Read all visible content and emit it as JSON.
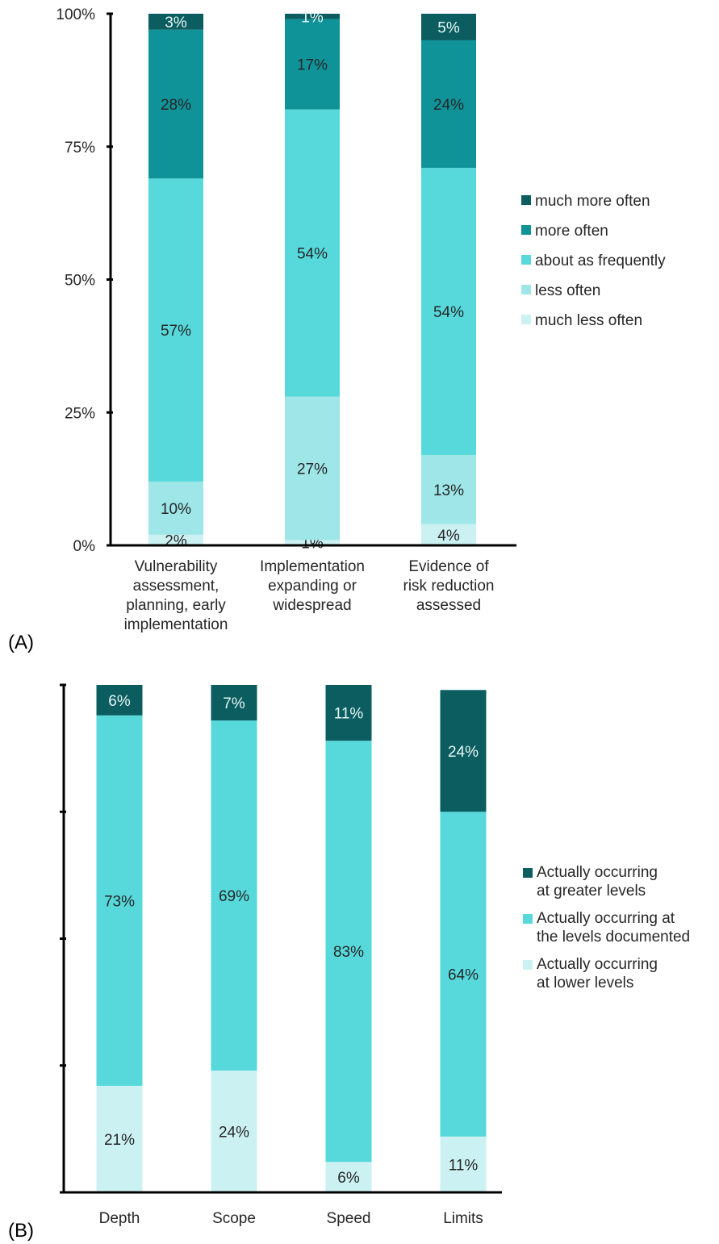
{
  "chart_data": [
    {
      "type": "bar",
      "stacked": true,
      "panel_label": "(A)",
      "categories": [
        [
          "Vulnerability",
          "assessment,",
          "planning, early",
          "implementation"
        ],
        [
          "Implementation",
          "expanding or",
          "widespread"
        ],
        [
          "Evidence of",
          "risk reduction",
          "assessed"
        ]
      ],
      "yticks": [
        "0%",
        "25%",
        "50%",
        "75%",
        "100%"
      ],
      "ylim": [
        0,
        100
      ],
      "legend_position": "right",
      "series": [
        {
          "name": "much less often",
          "color": "#ccf1f2",
          "values": [
            2,
            1,
            4
          ],
          "labels": [
            "2%",
            "1%",
            "4%"
          ],
          "label_color": "#262626"
        },
        {
          "name": "less often",
          "color": "#9ee6e8",
          "values": [
            10,
            27,
            13
          ],
          "labels": [
            "10%",
            "27%",
            "13%"
          ],
          "label_color": "#262626"
        },
        {
          "name": "about as frequently",
          "color": "#57d9dc",
          "values": [
            57,
            54,
            54
          ],
          "labels": [
            "57%",
            "54%",
            "54%"
          ],
          "label_color": "#262626"
        },
        {
          "name": "more often",
          "color": "#0f9399",
          "values": [
            28,
            17,
            24
          ],
          "labels": [
            "28%",
            "17%",
            "24%"
          ],
          "label_color": "#262626"
        },
        {
          "name": "much more often",
          "color": "#0b5d60",
          "values": [
            3,
            1,
            5
          ],
          "labels": [
            "3%",
            "1%",
            "5%"
          ],
          "label_color": "#e6f7f7"
        }
      ]
    },
    {
      "type": "bar",
      "stacked": true,
      "panel_label": "(B)",
      "categories": [
        [
          "Depth"
        ],
        [
          "Scope"
        ],
        [
          "Speed"
        ],
        [
          "Limits"
        ]
      ],
      "ylim": [
        0,
        100
      ],
      "legend_position": "right",
      "series": [
        {
          "name": "Actually occurring at lower levels",
          "legend_lines": [
            "Actually occurring",
            "at lower levels"
          ],
          "color": "#ccf1f2",
          "values": [
            21,
            24,
            6,
            11
          ],
          "labels": [
            "21%",
            "24%",
            "6%",
            "11%"
          ],
          "label_color": "#262626"
        },
        {
          "name": "Actually occurring at the levels documented",
          "legend_lines": [
            "Actually occurring at",
            "the levels documented"
          ],
          "color": "#57d9dc",
          "values": [
            73,
            69,
            83,
            64
          ],
          "labels": [
            "73%",
            "69%",
            "83%",
            "64%"
          ],
          "label_color": "#262626"
        },
        {
          "name": "Actually occurring at greater levels",
          "legend_lines": [
            "Actually occurring",
            "at greater levels"
          ],
          "color": "#0b5d60",
          "values": [
            6,
            7,
            11,
            24
          ],
          "labels": [
            "6%",
            "7%",
            "11%",
            "24%"
          ],
          "label_color": "#e6f7f7"
        }
      ]
    }
  ]
}
